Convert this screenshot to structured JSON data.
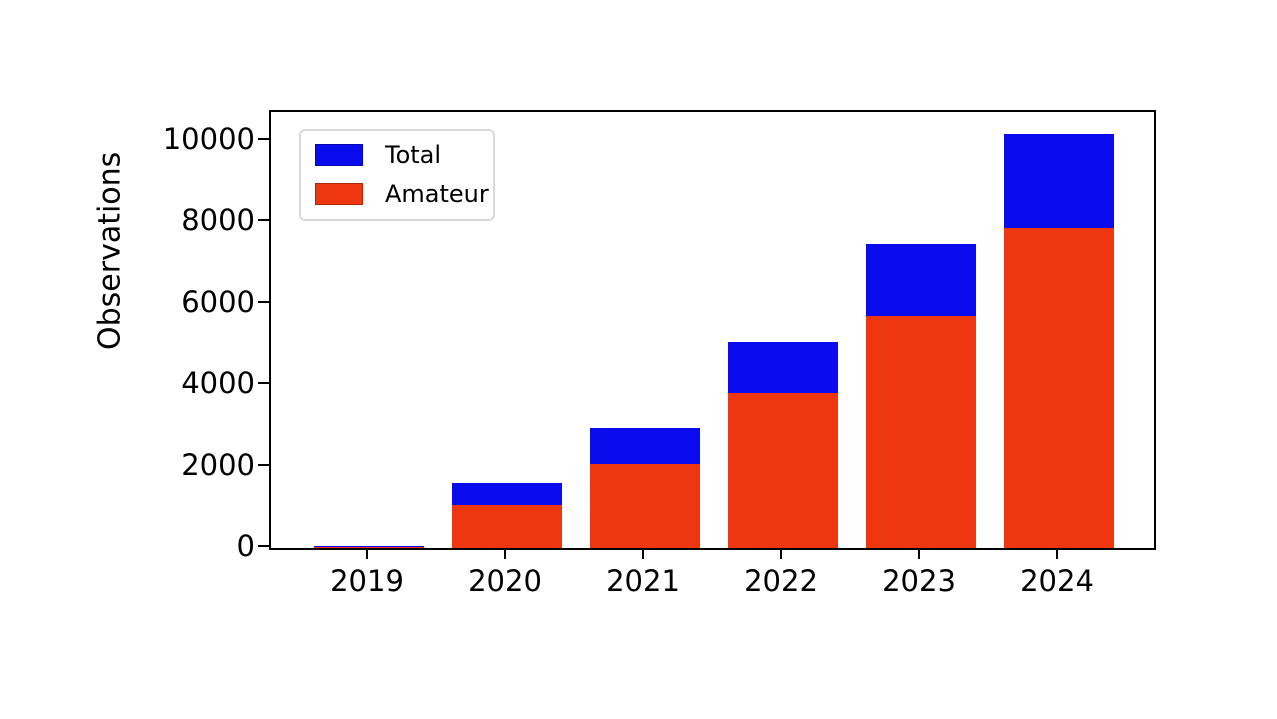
{
  "figure": {
    "background": "#ffffff",
    "axis_color": "#000000"
  },
  "chart_data": {
    "type": "bar",
    "mode": "overlay",
    "title": "",
    "xlabel": "",
    "ylabel": "Observations",
    "categories": [
      "2019",
      "2020",
      "2021",
      "2022",
      "2023",
      "2024"
    ],
    "series": [
      {
        "name": "Total",
        "color": "#0b0cee",
        "values": [
          50,
          1600,
          2950,
          5050,
          7450,
          10150
        ]
      },
      {
        "name": "Amateur",
        "color": "#ee3611",
        "values": [
          20,
          1050,
          2050,
          3800,
          5700,
          7850
        ]
      }
    ],
    "yticks": [
      0,
      2000,
      4000,
      6000,
      8000,
      10000
    ],
    "ylim": [
      0,
      10700
    ],
    "legend_position": "upper left",
    "grid": false
  }
}
